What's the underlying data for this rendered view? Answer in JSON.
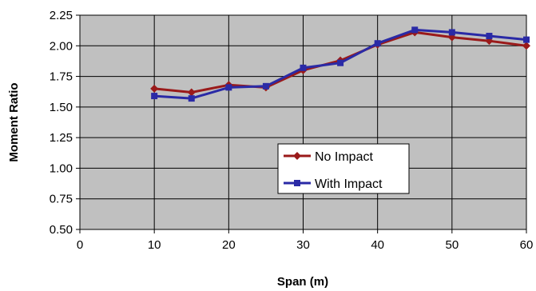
{
  "chart_data": {
    "type": "line",
    "xlabel": "Span (m)",
    "ylabel": "Moment Ratio",
    "xlim": [
      0,
      60
    ],
    "ylim": [
      0.5,
      2.25
    ],
    "x_ticks": [
      "0",
      "10",
      "20",
      "30",
      "40",
      "50",
      "60"
    ],
    "y_ticks": [
      "0.50",
      "0.75",
      "1.00",
      "1.25",
      "1.50",
      "1.75",
      "2.00",
      "2.25"
    ],
    "grid": true,
    "plot_background": "#c0c0c0",
    "legend_position": "center-right inside plot",
    "series": [
      {
        "name": "No Impact",
        "color": "#9a1a1a",
        "marker": "diamond",
        "x": [
          10,
          15,
          20,
          25,
          30,
          35,
          40,
          45,
          50,
          55,
          60
        ],
        "y": [
          1.65,
          1.62,
          1.68,
          1.66,
          1.8,
          1.88,
          2.01,
          2.11,
          2.07,
          2.04,
          2.0
        ]
      },
      {
        "name": "With Impact",
        "color": "#2a2aa6",
        "marker": "square",
        "x": [
          10,
          15,
          20,
          25,
          30,
          35,
          40,
          45,
          50,
          55,
          60
        ],
        "y": [
          1.59,
          1.57,
          1.66,
          1.67,
          1.82,
          1.86,
          2.02,
          2.13,
          2.11,
          2.08,
          2.05
        ]
      }
    ]
  }
}
